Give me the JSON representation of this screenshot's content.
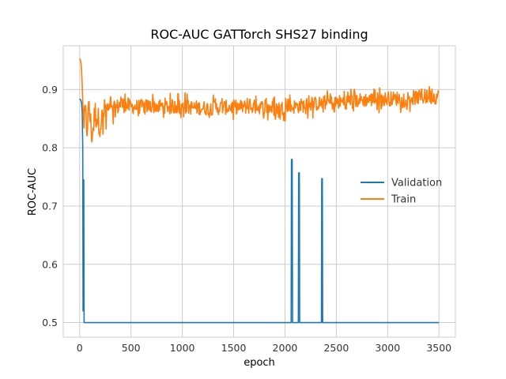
{
  "chart_data": {
    "type": "line",
    "title": "ROC-AUC GATTorch SHS27 binding",
    "xlabel": "epoch",
    "ylabel": "ROC-AUC",
    "xlim": [
      -160,
      3660
    ],
    "ylim": [
      0.475,
      0.975
    ],
    "xticks": [
      0,
      500,
      1000,
      1500,
      2000,
      2500,
      3000,
      3500
    ],
    "yticks": [
      0.5,
      0.6,
      0.7,
      0.8,
      0.9
    ],
    "ytick_labels": [
      "0.5",
      "0.6",
      "0.7",
      "0.8",
      "0.9"
    ],
    "grid": true,
    "legend_position": "center-right",
    "series": [
      {
        "name": "Validation",
        "color": "#1f77b4",
        "points": [
          [
            0,
            0.884
          ],
          [
            10,
            0.882
          ],
          [
            18,
            0.878
          ],
          [
            25,
            0.86
          ],
          [
            30,
            0.8
          ],
          [
            33,
            0.52
          ],
          [
            36,
            0.745
          ],
          [
            40,
            0.745
          ],
          [
            43,
            0.5
          ],
          [
            50,
            0.5
          ],
          [
            2060,
            0.5
          ],
          [
            2063,
            0.78
          ],
          [
            2070,
            0.78
          ],
          [
            2074,
            0.5
          ],
          [
            2130,
            0.5
          ],
          [
            2133,
            0.757
          ],
          [
            2140,
            0.757
          ],
          [
            2143,
            0.5
          ],
          [
            2355,
            0.5
          ],
          [
            2358,
            0.747
          ],
          [
            2364,
            0.747
          ],
          [
            2367,
            0.5
          ],
          [
            3500,
            0.5
          ]
        ]
      },
      {
        "name": "Train",
        "color": "#ff7f0e",
        "points": [
          [
            0,
            0.953
          ],
          [
            8,
            0.95
          ],
          [
            15,
            0.942
          ],
          [
            22,
            0.92
          ],
          [
            30,
            0.88
          ],
          [
            40,
            0.84
          ],
          [
            55,
            0.86
          ],
          [
            70,
            0.83
          ],
          [
            90,
            0.87
          ],
          [
            120,
            0.82
          ],
          [
            150,
            0.86
          ],
          [
            200,
            0.84
          ],
          [
            250,
            0.87
          ],
          [
            300,
            0.86
          ],
          [
            400,
            0.875
          ],
          [
            500,
            0.87
          ],
          [
            750,
            0.872
          ],
          [
            1000,
            0.87
          ],
          [
            1250,
            0.868
          ],
          [
            1500,
            0.87
          ],
          [
            1750,
            0.87
          ],
          [
            2000,
            0.868
          ],
          [
            2250,
            0.875
          ],
          [
            2500,
            0.878
          ],
          [
            2750,
            0.882
          ],
          [
            3000,
            0.884
          ],
          [
            3250,
            0.886
          ],
          [
            3500,
            0.888
          ]
        ],
        "noise_note_free": true
      }
    ],
    "band": {
      "series": "Train",
      "lower": [
        [
          50,
          0.8
        ],
        [
          100,
          0.805
        ],
        [
          150,
          0.79
        ],
        [
          200,
          0.81
        ],
        [
          300,
          0.835
        ],
        [
          500,
          0.85
        ],
        [
          1000,
          0.85
        ],
        [
          1500,
          0.845
        ],
        [
          2000,
          0.845
        ],
        [
          2500,
          0.855
        ],
        [
          3000,
          0.86
        ],
        [
          3500,
          0.86
        ]
      ],
      "upper": [
        [
          50,
          0.88
        ],
        [
          100,
          0.885
        ],
        [
          150,
          0.88
        ],
        [
          200,
          0.89
        ],
        [
          300,
          0.89
        ],
        [
          500,
          0.895
        ],
        [
          1000,
          0.895
        ],
        [
          1500,
          0.89
        ],
        [
          2000,
          0.89
        ],
        [
          2500,
          0.9
        ],
        [
          3000,
          0.905
        ],
        [
          3500,
          0.907
        ]
      ]
    }
  }
}
